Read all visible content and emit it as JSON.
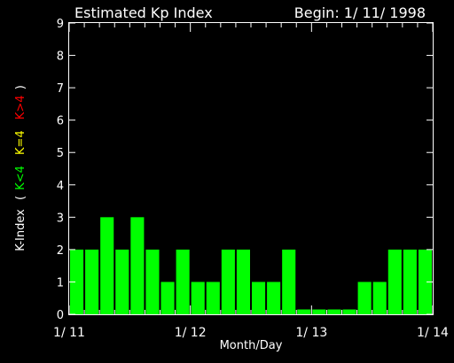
{
  "chart_data": {
    "type": "bar",
    "title": "Estimated Kp Index",
    "subtitle": "Begin: 1/ 11/ 1998",
    "xlabel": "Month/Day",
    "ylabel": {
      "prefix": "K-Index",
      "open": "(",
      "low": "K<4",
      "mid": "K=4",
      "high": "K>4",
      "close": ")"
    },
    "ylim": [
      0,
      9
    ],
    "yticks": [
      "0",
      "1",
      "2",
      "3",
      "4",
      "5",
      "6",
      "7",
      "8",
      "9"
    ],
    "xlim_days": [
      0,
      3
    ],
    "xticks": [
      {
        "day": 0,
        "label": "1/ 11"
      },
      {
        "day": 1,
        "label": "1/ 12"
      },
      {
        "day": 2,
        "label": "1/ 13"
      },
      {
        "day": 3,
        "label": "1/ 14"
      }
    ],
    "interval_hours": 3,
    "values": [
      2,
      2,
      3,
      2,
      3,
      2,
      1,
      2,
      1,
      1,
      2,
      2,
      1,
      1,
      2,
      0.15,
      0.15,
      0.15,
      0.15,
      1,
      1,
      2,
      2,
      2
    ],
    "colors": {
      "low": "#00ff00",
      "mid": "#ffff00",
      "high": "#ff0000",
      "axes": "#ffffff",
      "background": "#000000"
    },
    "grid": false
  }
}
